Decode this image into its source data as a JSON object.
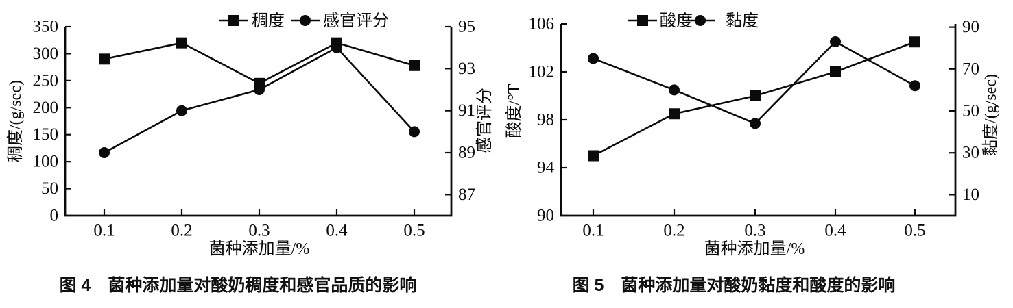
{
  "page": {
    "background_color": "#ffffff",
    "ink_color": "#0b0b0b"
  },
  "chart_data": [
    {
      "type": "line",
      "figure_label": "图 4",
      "caption": "图 4　菌种添加量对酸奶稠度和感官品质的影响",
      "xlabel": "菌种添加量/%",
      "categories": [
        0.1,
        0.2,
        0.3,
        0.4,
        0.5
      ],
      "x_tick_labels": [
        "0.1",
        "0.2",
        "0.3",
        "0.4",
        "0.5"
      ],
      "left_axis": {
        "label": "稠度/(g/sec)",
        "min": 0,
        "max": 350,
        "ticks": [
          0,
          50,
          100,
          150,
          200,
          250,
          300,
          350
        ]
      },
      "right_axis": {
        "label": "感官评分",
        "min": 86,
        "max": 95,
        "ticks": [
          87,
          89,
          91,
          93,
          95
        ]
      },
      "legend": [
        "稠度",
        "感官评分"
      ],
      "legend_position": "top",
      "grid": false,
      "series": [
        {
          "name": "稠度",
          "axis": "left",
          "marker": "square",
          "values": [
            290,
            320,
            245,
            320,
            278
          ]
        },
        {
          "name": "感官评分",
          "axis": "right",
          "marker": "circle",
          "values": [
            89,
            91,
            92,
            94,
            90
          ]
        }
      ]
    },
    {
      "type": "line",
      "figure_label": "图 5",
      "caption": "图 5　菌种添加量对酸奶黏度和酸度的影响",
      "xlabel": "菌种添加量/%",
      "categories": [
        0.1,
        0.2,
        0.3,
        0.4,
        0.5
      ],
      "x_tick_labels": [
        "0.1",
        "0.2",
        "0.3",
        "0.4",
        "0.5"
      ],
      "left_axis": {
        "label": "酸度/°T",
        "min": 90,
        "max": 106,
        "ticks": [
          90,
          94,
          98,
          102,
          106
        ]
      },
      "right_axis": {
        "label": "黏度/(g/sec)",
        "min": 0,
        "max": 91.5,
        "ticks": [
          10,
          30,
          50,
          70,
          90
        ]
      },
      "legend": [
        "酸度",
        "黏度"
      ],
      "legend_position": "top",
      "grid": false,
      "series": [
        {
          "name": "酸度",
          "axis": "left",
          "marker": "square",
          "values": [
            95,
            98.5,
            100,
            102,
            104.5
          ]
        },
        {
          "name": "黏度",
          "axis": "right",
          "marker": "circle",
          "values": [
            75,
            60,
            44,
            83,
            62
          ]
        }
      ]
    }
  ]
}
